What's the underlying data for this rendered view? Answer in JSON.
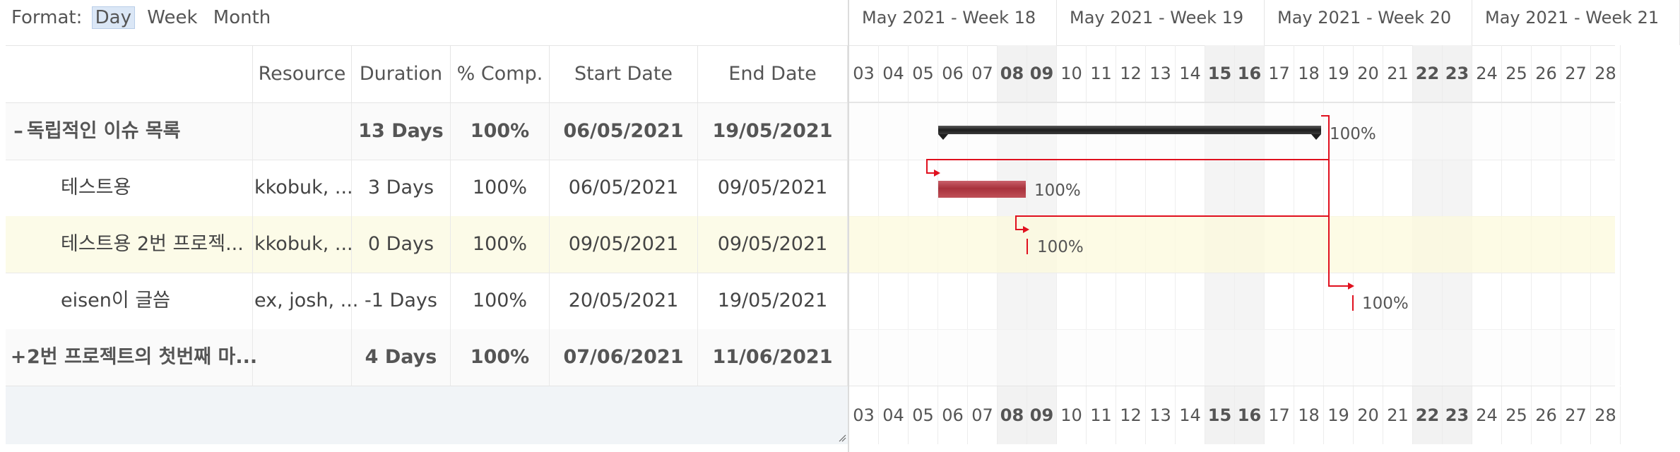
{
  "format": {
    "label": "Format:",
    "options": [
      "Day",
      "Week",
      "Month"
    ],
    "selected": "Day"
  },
  "columns": {
    "name": "",
    "resource": "Resource",
    "duration": "Duration",
    "completion": "% Comp.",
    "start": "Start Date",
    "end": "End Date"
  },
  "tasks": [
    {
      "name": "독립적인 이슈 목록",
      "toggle": "–",
      "resource": "",
      "duration": "13 Days",
      "completion": "100%",
      "start": "06/05/2021",
      "end": "19/05/2021",
      "group": true,
      "selected": false
    },
    {
      "name": "테스트용",
      "toggle": "",
      "resource": "kkobuk, ...",
      "duration": "3 Days",
      "completion": "100%",
      "start": "06/05/2021",
      "end": "09/05/2021",
      "group": false,
      "selected": false
    },
    {
      "name": "테스트용 2번 프로젝...",
      "toggle": "",
      "resource": "kkobuk, ...",
      "duration": "0 Days",
      "completion": "100%",
      "start": "09/05/2021",
      "end": "09/05/2021",
      "group": false,
      "selected": true
    },
    {
      "name": "eisen이 글씀",
      "toggle": "",
      "resource": "ex, josh, ...",
      "duration": "-1 Days",
      "completion": "100%",
      "start": "20/05/2021",
      "end": "19/05/2021",
      "group": false,
      "selected": false
    },
    {
      "name": "2번 프로젝트의 첫번째 마...",
      "toggle": "+",
      "resource": "",
      "duration": "4 Days",
      "completion": "100%",
      "start": "07/06/2021",
      "end": "11/06/2021",
      "group": true,
      "selected": false
    }
  ],
  "weeks": [
    "May 2021 - Week 18",
    "May 2021 - Week 19",
    "May 2021 - Week 20",
    "May 2021 - Week 21"
  ],
  "days": [
    "03",
    "04",
    "05",
    "06",
    "07",
    "08",
    "09",
    "10",
    "11",
    "12",
    "13",
    "14",
    "15",
    "16",
    "17",
    "18",
    "19",
    "20",
    "21",
    "22",
    "23",
    "24",
    "25",
    "26",
    "27",
    "28"
  ],
  "weekend_days": [
    "08",
    "09",
    "15",
    "16",
    "22",
    "23"
  ],
  "chart": {
    "bar_labels": [
      "100%",
      "100%",
      "100%",
      "100%"
    ],
    "colors": {
      "group_bar": "#2b2b2b",
      "task_bar": "#b5474f",
      "dependency": "#e0101e",
      "selected_row": "#fcfbe8"
    }
  }
}
